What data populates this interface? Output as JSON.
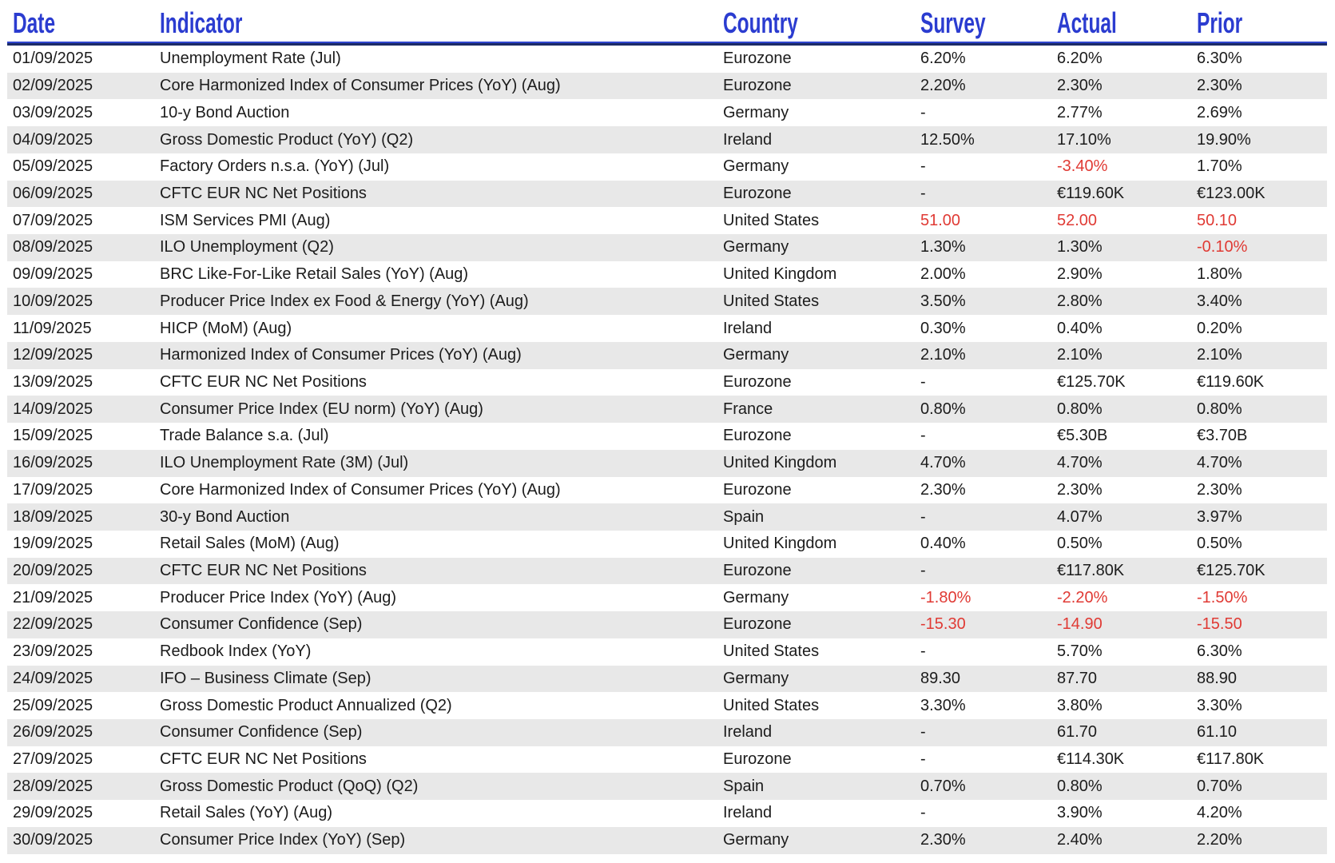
{
  "colors": {
    "accent": "#2b3cd0",
    "ruleTop": "#2e44cd",
    "ruleBottom": "#1b2a66",
    "rowAlt": "#e8e8e8",
    "negative": "#e03a34",
    "text": "#1c1c1c"
  },
  "table": {
    "columns": [
      {
        "key": "date",
        "label": "Date"
      },
      {
        "key": "indicator",
        "label": "Indicator"
      },
      {
        "key": "country",
        "label": "Country"
      },
      {
        "key": "survey",
        "label": "Survey"
      },
      {
        "key": "actual",
        "label": "Actual"
      },
      {
        "key": "prior",
        "label": "Prior"
      }
    ],
    "rows": [
      {
        "date": "01/09/2025",
        "indicator": "Unemployment Rate (Jul)",
        "country": "Eurozone",
        "survey": "6.20%",
        "actual": "6.20%",
        "prior": "6.30%",
        "red_cells": []
      },
      {
        "date": "02/09/2025",
        "indicator": "Core Harmonized Index of Consumer Prices (YoY) (Aug)",
        "country": "Eurozone",
        "survey": "2.20%",
        "actual": "2.30%",
        "prior": "2.30%",
        "red_cells": []
      },
      {
        "date": "03/09/2025",
        "indicator": "10-y Bond Auction",
        "country": "Germany",
        "survey": "-",
        "actual": "2.77%",
        "prior": "2.69%",
        "red_cells": []
      },
      {
        "date": "04/09/2025",
        "indicator": "Gross Domestic Product (YoY) (Q2)",
        "country": "Ireland",
        "survey": "12.50%",
        "actual": "17.10%",
        "prior": "19.90%",
        "red_cells": []
      },
      {
        "date": "05/09/2025",
        "indicator": "Factory Orders n.s.a. (YoY) (Jul)",
        "country": "Germany",
        "survey": "-",
        "actual": "-3.40%",
        "prior": "1.70%",
        "red_cells": [
          "actual"
        ]
      },
      {
        "date": "06/09/2025",
        "indicator": "CFTC EUR NC Net Positions",
        "country": "Eurozone",
        "survey": "-",
        "actual": "€119.60K",
        "prior": "€123.00K",
        "red_cells": []
      },
      {
        "date": "07/09/2025",
        "indicator": "ISM Services PMI (Aug)",
        "country": "United States",
        "survey": "51.00",
        "actual": "52.00",
        "prior": "50.10",
        "red_cells": [
          "survey",
          "actual",
          "prior"
        ]
      },
      {
        "date": "08/09/2025",
        "indicator": "ILO Unemployment (Q2)",
        "country": "Germany",
        "survey": "1.30%",
        "actual": "1.30%",
        "prior": "-0.10%",
        "red_cells": [
          "prior"
        ]
      },
      {
        "date": "09/09/2025",
        "indicator": "BRC Like-For-Like Retail Sales (YoY) (Aug)",
        "country": "United Kingdom",
        "survey": "2.00%",
        "actual": "2.90%",
        "prior": "1.80%",
        "red_cells": []
      },
      {
        "date": "10/09/2025",
        "indicator": "Producer Price Index ex Food & Energy (YoY) (Aug)",
        "country": "United States",
        "survey": "3.50%",
        "actual": "2.80%",
        "prior": "3.40%",
        "red_cells": []
      },
      {
        "date": "11/09/2025",
        "indicator": "HICP (MoM) (Aug)",
        "country": "Ireland",
        "survey": "0.30%",
        "actual": "0.40%",
        "prior": "0.20%",
        "red_cells": []
      },
      {
        "date": "12/09/2025",
        "indicator": "Harmonized Index of Consumer Prices (YoY) (Aug)",
        "country": "Germany",
        "survey": "2.10%",
        "actual": "2.10%",
        "prior": "2.10%",
        "red_cells": []
      },
      {
        "date": "13/09/2025",
        "indicator": "CFTC EUR NC Net Positions",
        "country": "Eurozone",
        "survey": "-",
        "actual": "€125.70K",
        "prior": "€119.60K",
        "red_cells": []
      },
      {
        "date": "14/09/2025",
        "indicator": "Consumer Price Index (EU norm) (YoY) (Aug)",
        "country": "France",
        "survey": "0.80%",
        "actual": "0.80%",
        "prior": "0.80%",
        "red_cells": []
      },
      {
        "date": "15/09/2025",
        "indicator": "Trade Balance s.a. (Jul)",
        "country": "Eurozone",
        "survey": "-",
        "actual": "€5.30B",
        "prior": "€3.70B",
        "red_cells": []
      },
      {
        "date": "16/09/2025",
        "indicator": "ILO Unemployment Rate (3M) (Jul)",
        "country": "United Kingdom",
        "survey": "4.70%",
        "actual": "4.70%",
        "prior": "4.70%",
        "red_cells": []
      },
      {
        "date": "17/09/2025",
        "indicator": "Core Harmonized Index of Consumer Prices (YoY) (Aug)",
        "country": "Eurozone",
        "survey": "2.30%",
        "actual": "2.30%",
        "prior": "2.30%",
        "red_cells": []
      },
      {
        "date": "18/09/2025",
        "indicator": "30-y Bond Auction",
        "country": "Spain",
        "survey": "-",
        "actual": "4.07%",
        "prior": "3.97%",
        "red_cells": []
      },
      {
        "date": "19/09/2025",
        "indicator": "Retail Sales (MoM) (Aug)",
        "country": "United Kingdom",
        "survey": "0.40%",
        "actual": "0.50%",
        "prior": "0.50%",
        "red_cells": []
      },
      {
        "date": "20/09/2025",
        "indicator": "CFTC EUR NC Net Positions",
        "country": "Eurozone",
        "survey": "-",
        "actual": "€117.80K",
        "prior": "€125.70K",
        "red_cells": []
      },
      {
        "date": "21/09/2025",
        "indicator": "Producer Price Index (YoY) (Aug)",
        "country": "Germany",
        "survey": "-1.80%",
        "actual": "-2.20%",
        "prior": "-1.50%",
        "red_cells": [
          "survey",
          "actual",
          "prior"
        ]
      },
      {
        "date": "22/09/2025",
        "indicator": "Consumer Confidence (Sep)",
        "country": "Eurozone",
        "survey": "-15.30",
        "actual": "-14.90",
        "prior": "-15.50",
        "red_cells": [
          "survey",
          "actual",
          "prior"
        ]
      },
      {
        "date": "23/09/2025",
        "indicator": "Redbook Index (YoY)",
        "country": "United States",
        "survey": "-",
        "actual": "5.70%",
        "prior": "6.30%",
        "red_cells": []
      },
      {
        "date": "24/09/2025",
        "indicator": "IFO – Business Climate (Sep)",
        "country": "Germany",
        "survey": "89.30",
        "actual": "87.70",
        "prior": "88.90",
        "red_cells": []
      },
      {
        "date": "25/09/2025",
        "indicator": "Gross Domestic Product Annualized (Q2)",
        "country": "United States",
        "survey": "3.30%",
        "actual": "3.80%",
        "prior": "3.30%",
        "red_cells": []
      },
      {
        "date": "26/09/2025",
        "indicator": "Consumer Confidence (Sep)",
        "country": "Ireland",
        "survey": "-",
        "actual": "61.70",
        "prior": "61.10",
        "red_cells": []
      },
      {
        "date": "27/09/2025",
        "indicator": "CFTC EUR NC Net Positions",
        "country": "Eurozone",
        "survey": "-",
        "actual": "€114.30K",
        "prior": "€117.80K",
        "red_cells": []
      },
      {
        "date": "28/09/2025",
        "indicator": "Gross Domestic Product (QoQ) (Q2)",
        "country": "Spain",
        "survey": "0.70%",
        "actual": "0.80%",
        "prior": "0.70%",
        "red_cells": []
      },
      {
        "date": "29/09/2025",
        "indicator": "Retail Sales (YoY) (Aug)",
        "country": "Ireland",
        "survey": "-",
        "actual": "3.90%",
        "prior": "4.20%",
        "red_cells": []
      },
      {
        "date": "30/09/2025",
        "indicator": "Consumer Price Index (YoY) (Sep)",
        "country": "Germany",
        "survey": "2.30%",
        "actual": "2.40%",
        "prior": "2.20%",
        "red_cells": []
      }
    ]
  }
}
